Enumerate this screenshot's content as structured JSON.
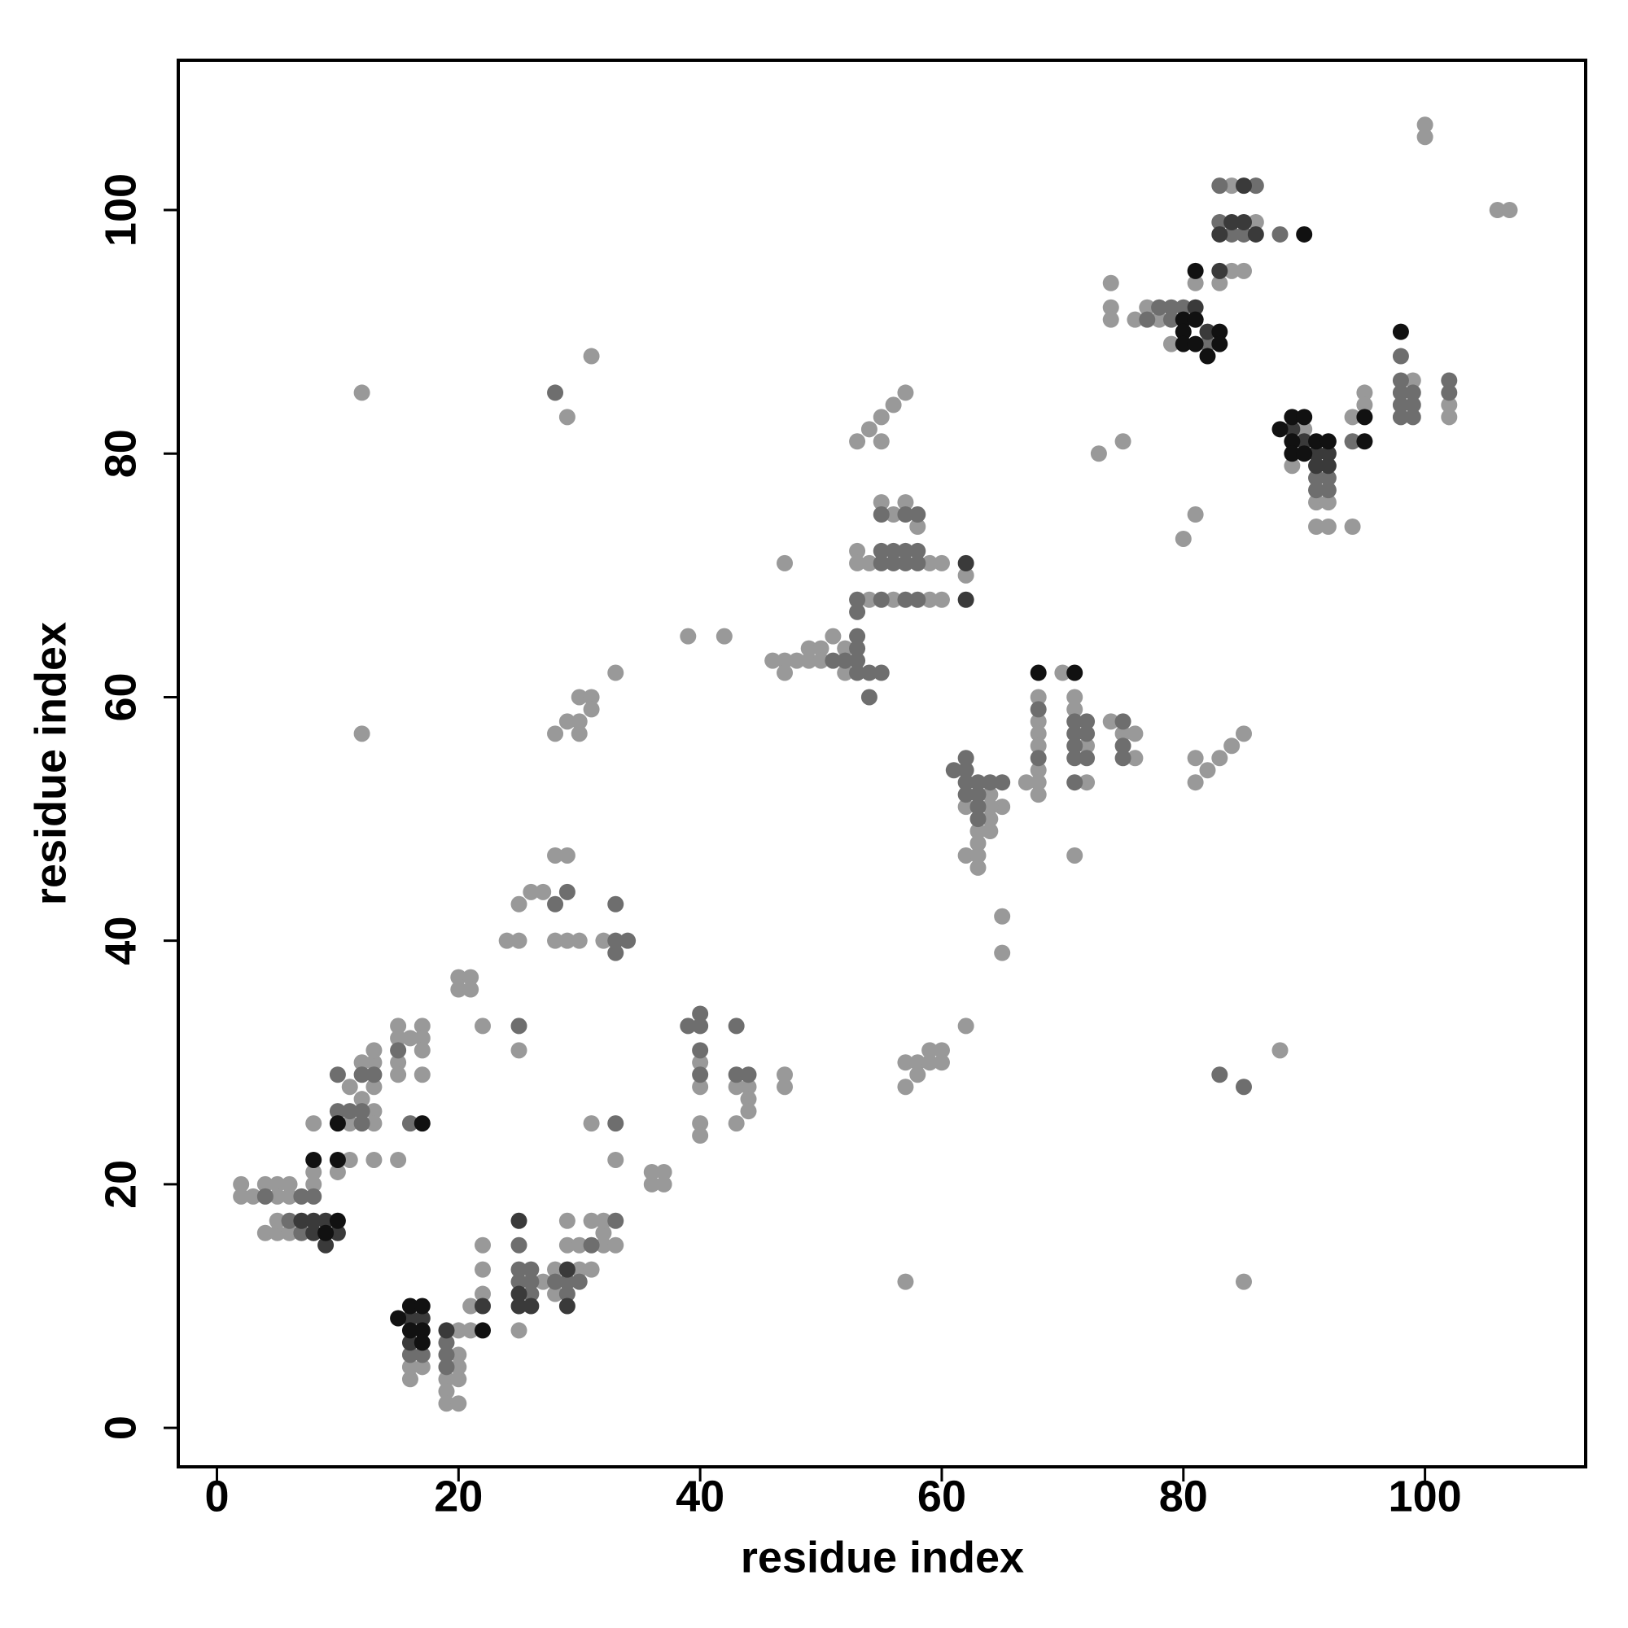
{
  "chart_data": {
    "type": "scatter",
    "x_label": "residue index",
    "y_label": "residue index",
    "xlim": [
      -3.2,
      113.3
    ],
    "ylim": [
      -3.2,
      112.3
    ],
    "xticks": [
      0,
      20,
      40,
      60,
      80,
      100
    ],
    "yticks": [
      0,
      20,
      40,
      60,
      80,
      100
    ],
    "grid": false,
    "series": [
      {
        "color": "#999999",
        "x": [
          2,
          2,
          3,
          4,
          5,
          5,
          6,
          6,
          4,
          5,
          5,
          6,
          8,
          8,
          8,
          10,
          11,
          11,
          12,
          12,
          13,
          13,
          13,
          13,
          13,
          11,
          13,
          15,
          15,
          15,
          15,
          15,
          16,
          17,
          17,
          17,
          17,
          16,
          16,
          17,
          19,
          19,
          19,
          20,
          20,
          20,
          20,
          20,
          21,
          21,
          22,
          22,
          22,
          25,
          27,
          28,
          28,
          29,
          29,
          30,
          30,
          31,
          31,
          32,
          32,
          32,
          33,
          31,
          33,
          36,
          37,
          36,
          37,
          20,
          21,
          20,
          21,
          22,
          25,
          24,
          25,
          25,
          26,
          27,
          28,
          29,
          28,
          29,
          30,
          32,
          28,
          29,
          30,
          30,
          30,
          31,
          31,
          33,
          29,
          31,
          12,
          12,
          40,
          40,
          40,
          40,
          43,
          43,
          44,
          44,
          44,
          47,
          47,
          39,
          42,
          46,
          47,
          47,
          48,
          49,
          49,
          50,
          50,
          51,
          52,
          52,
          47,
          53,
          54,
          55,
          56,
          57,
          58,
          56,
          59,
          59,
          60,
          60,
          62,
          53,
          54,
          53,
          54,
          55,
          55,
          56,
          57,
          57,
          57,
          58,
          58,
          59,
          59,
          60,
          60,
          62,
          57,
          65,
          65,
          62,
          62,
          63,
          63,
          63,
          63,
          64,
          64,
          64,
          65,
          64,
          67,
          68,
          68,
          68,
          68,
          68,
          68,
          68,
          70,
          71,
          71,
          71,
          72,
          72,
          74,
          75,
          76,
          76,
          81,
          81,
          82,
          83,
          84,
          85,
          73,
          75,
          80,
          81,
          85,
          88,
          74,
          74,
          74,
          76,
          77,
          78,
          79,
          81,
          83,
          84,
          84,
          85,
          86,
          100,
          100,
          106,
          107,
          89,
          90,
          91,
          91,
          92,
          92,
          94,
          94,
          95,
          95,
          99,
          102,
          102
        ],
        "values": [
          20,
          19,
          19,
          20,
          20,
          19,
          20,
          19,
          16,
          16,
          17,
          16,
          20,
          21,
          25,
          21,
          28,
          25,
          27,
          30,
          30,
          31,
          28,
          26,
          25,
          22,
          22,
          33,
          32,
          30,
          29,
          22,
          32,
          33,
          32,
          31,
          29,
          4,
          5,
          5,
          4,
          3,
          2,
          2,
          4,
          5,
          6,
          8,
          8,
          10,
          11,
          13,
          15,
          8,
          12,
          13,
          11,
          15,
          17,
          13,
          15,
          13,
          17,
          15,
          16,
          17,
          15,
          25,
          22,
          21,
          21,
          20,
          20,
          37,
          37,
          36,
          36,
          33,
          31,
          40,
          40,
          43,
          44,
          44,
          47,
          47,
          40,
          40,
          40,
          40,
          57,
          58,
          58,
          60,
          57,
          60,
          59,
          62,
          83,
          88,
          85,
          57,
          30,
          28,
          25,
          24,
          28,
          25,
          28,
          27,
          26,
          29,
          28,
          65,
          65,
          63,
          63,
          62,
          63,
          63,
          64,
          64,
          63,
          65,
          64,
          62,
          71,
          72,
          68,
          76,
          75,
          76,
          74,
          68,
          71,
          68,
          71,
          68,
          70,
          71,
          71,
          81,
          82,
          83,
          81,
          84,
          85,
          30,
          28,
          30,
          29,
          31,
          30,
          31,
          30,
          33,
          12,
          42,
          39,
          51,
          47,
          49,
          48,
          47,
          46,
          52,
          50,
          49,
          51,
          51,
          53,
          60,
          58,
          57,
          56,
          54,
          53,
          52,
          62,
          60,
          59,
          47,
          53,
          56,
          58,
          57,
          57,
          55,
          55,
          53,
          54,
          55,
          56,
          57,
          80,
          81,
          73,
          75,
          12,
          31,
          94,
          92,
          91,
          91,
          92,
          91,
          89,
          94,
          94,
          102,
          95,
          95,
          99,
          107,
          106,
          100,
          100,
          79,
          82,
          76,
          74,
          74,
          76,
          74,
          83,
          85,
          84,
          86,
          84,
          83
        ]
      },
      {
        "color": "#6e6e6e",
        "x": [
          4,
          6,
          7,
          8,
          7,
          10,
          11,
          12,
          10,
          12,
          13,
          12,
          15,
          16,
          16,
          17,
          19,
          19,
          19,
          25,
          25,
          25,
          26,
          26,
          26,
          28,
          29,
          29,
          30,
          31,
          33,
          33,
          25,
          28,
          29,
          33,
          33,
          33,
          34,
          28,
          39,
          40,
          40,
          40,
          40,
          43,
          43,
          44,
          51,
          52,
          53,
          53,
          53,
          53,
          54,
          55,
          54,
          55,
          57,
          58,
          55,
          56,
          57,
          58,
          55,
          56,
          57,
          58,
          55,
          57,
          58,
          53,
          53,
          61,
          62,
          62,
          62,
          63,
          63,
          63,
          64,
          65,
          62,
          63,
          68,
          68,
          71,
          71,
          71,
          71,
          71,
          72,
          72,
          72,
          75,
          75,
          75,
          83,
          85,
          77,
          78,
          79,
          79,
          80,
          81,
          82,
          83,
          83,
          84,
          85,
          86,
          88,
          91,
          92,
          91,
          94,
          92,
          98,
          98,
          98,
          98,
          99,
          99,
          99,
          102,
          102,
          98
        ],
        "values": [
          19,
          17,
          19,
          19,
          16,
          26,
          26,
          26,
          29,
          29,
          29,
          25,
          31,
          25,
          6,
          6,
          7,
          6,
          5,
          13,
          15,
          12,
          13,
          11,
          12,
          12,
          12,
          11,
          12,
          15,
          17,
          25,
          33,
          43,
          44,
          43,
          40,
          39,
          40,
          85,
          33,
          34,
          33,
          31,
          29,
          33,
          29,
          29,
          63,
          63,
          65,
          64,
          63,
          62,
          62,
          62,
          60,
          75,
          75,
          75,
          72,
          72,
          72,
          72,
          71,
          71,
          71,
          71,
          68,
          68,
          68,
          68,
          67,
          54,
          55,
          53,
          52,
          53,
          52,
          51,
          53,
          53,
          54,
          50,
          59,
          55,
          58,
          57,
          56,
          55,
          53,
          58,
          57,
          55,
          58,
          56,
          55,
          29,
          28,
          91,
          92,
          92,
          91,
          92,
          91,
          89,
          102,
          99,
          98,
          98,
          102,
          98,
          78,
          78,
          77,
          81,
          77,
          88,
          86,
          85,
          84,
          85,
          84,
          83,
          86,
          85,
          83
        ]
      },
      {
        "color": "#3a3a3a",
        "x": [
          7,
          8,
          9,
          8,
          10,
          9,
          16,
          17,
          16,
          19,
          22,
          25,
          25,
          25,
          26,
          29,
          29,
          62,
          62,
          81,
          83,
          82,
          83,
          84,
          85,
          85,
          86,
          89,
          90,
          91,
          91,
          92,
          92
        ],
        "values": [
          17,
          17,
          17,
          16,
          16,
          15,
          9,
          9,
          7,
          8,
          10,
          17,
          11,
          10,
          10,
          10,
          13,
          71,
          68,
          92,
          95,
          90,
          98,
          99,
          99,
          102,
          98,
          82,
          81,
          80,
          79,
          79,
          80
        ]
      },
      {
        "color": "#111111",
        "x": [
          8,
          10,
          10,
          9,
          10,
          17,
          15,
          16,
          17,
          16,
          17,
          17,
          22,
          68,
          71,
          80,
          80,
          80,
          81,
          81,
          81,
          82,
          83,
          83,
          90,
          88,
          89,
          90,
          89,
          89,
          90,
          91,
          92,
          95,
          95,
          98
        ],
        "values": [
          22,
          22,
          25,
          16,
          17,
          25,
          9,
          10,
          10,
          8,
          8,
          7,
          8,
          62,
          62,
          91,
          90,
          89,
          95,
          91,
          89,
          88,
          90,
          89,
          98,
          82,
          83,
          83,
          81,
          80,
          80,
          81,
          81,
          81,
          83,
          90
        ]
      }
    ]
  }
}
